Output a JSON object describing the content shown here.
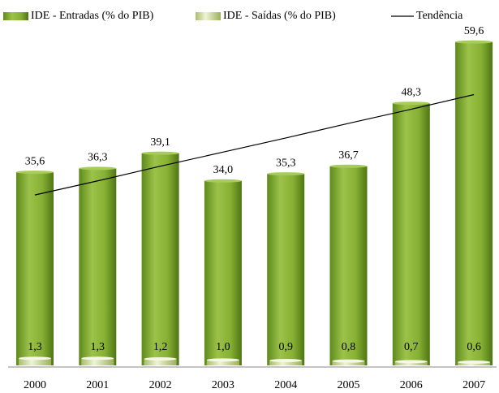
{
  "chart_data": {
    "type": "bar",
    "categories": [
      "2000",
      "2001",
      "2002",
      "2003",
      "2004",
      "2005",
      "2006",
      "2007"
    ],
    "series": [
      {
        "name": "IDE - Entradas (% do PIB)",
        "color": "#7faa2e",
        "values": [
          35.6,
          36.3,
          39.1,
          34.0,
          35.3,
          36.7,
          48.3,
          59.6
        ],
        "value_labels": [
          "35,6",
          "36,3",
          "39,1",
          "34,0",
          "35,3",
          "36,7",
          "48,3",
          "59,6"
        ]
      },
      {
        "name": "IDE - Saídas (% do PIB)",
        "color": "#c8d89a",
        "values": [
          1.3,
          1.3,
          1.2,
          1.0,
          0.9,
          0.8,
          0.7,
          0.6
        ],
        "value_labels": [
          "1,3",
          "1,3",
          "1,2",
          "1,0",
          "0,9",
          "0,8",
          "0,7",
          "0,6"
        ]
      },
      {
        "name": "Tendência",
        "type": "line",
        "color": "#000000",
        "values": [
          31.4,
          34.0,
          36.7,
          39.3,
          41.9,
          44.6,
          47.2,
          49.9
        ]
      }
    ],
    "ylim": [
      0,
      60
    ]
  }
}
